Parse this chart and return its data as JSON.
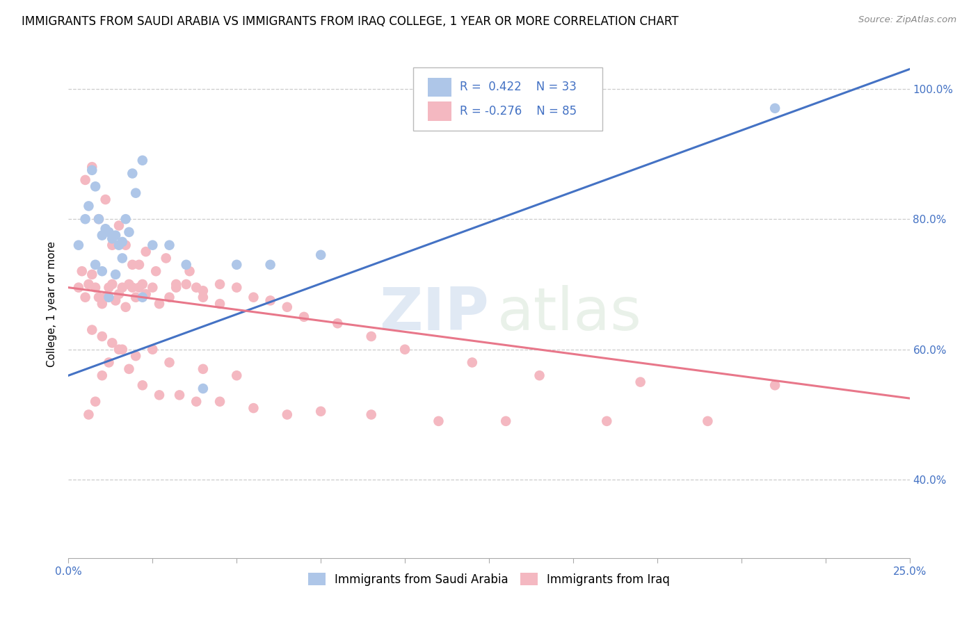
{
  "title": "IMMIGRANTS FROM SAUDI ARABIA VS IMMIGRANTS FROM IRAQ COLLEGE, 1 YEAR OR MORE CORRELATION CHART",
  "source": "Source: ZipAtlas.com",
  "ylabel": "College, 1 year or more",
  "xlim": [
    0.0,
    0.25
  ],
  "ylim": [
    0.28,
    1.06
  ],
  "saudi_color": "#aec6e8",
  "iraq_color": "#f4b8c1",
  "saudi_line_color": "#4472c4",
  "iraq_line_color": "#e8778a",
  "legend_R_color": "#4472c4",
  "saudi_line_x": [
    0.0,
    0.25
  ],
  "saudi_line_y": [
    0.56,
    1.03
  ],
  "iraq_line_x": [
    0.0,
    0.25
  ],
  "iraq_line_y": [
    0.695,
    0.525
  ],
  "ytick_positions": [
    0.4,
    0.6,
    0.8,
    1.0
  ],
  "ytick_labels": [
    "40.0%",
    "60.0%",
    "80.0%",
    "100.0%"
  ],
  "saudi_scatter_x": [
    0.003,
    0.005,
    0.006,
    0.007,
    0.008,
    0.009,
    0.01,
    0.011,
    0.012,
    0.013,
    0.014,
    0.015,
    0.016,
    0.017,
    0.019,
    0.02,
    0.022,
    0.025,
    0.03,
    0.035,
    0.04,
    0.05,
    0.06,
    0.075,
    0.008,
    0.01,
    0.012,
    0.014,
    0.016,
    0.018,
    0.022,
    0.12,
    0.21
  ],
  "saudi_scatter_y": [
    0.76,
    0.8,
    0.82,
    0.875,
    0.85,
    0.8,
    0.775,
    0.785,
    0.78,
    0.77,
    0.775,
    0.76,
    0.765,
    0.8,
    0.87,
    0.84,
    0.89,
    0.76,
    0.76,
    0.73,
    0.54,
    0.73,
    0.73,
    0.745,
    0.73,
    0.72,
    0.68,
    0.715,
    0.74,
    0.78,
    0.68,
    0.945,
    0.97
  ],
  "iraq_scatter_x": [
    0.003,
    0.004,
    0.005,
    0.006,
    0.007,
    0.008,
    0.009,
    0.01,
    0.011,
    0.012,
    0.013,
    0.014,
    0.015,
    0.016,
    0.017,
    0.018,
    0.019,
    0.02,
    0.021,
    0.022,
    0.023,
    0.025,
    0.027,
    0.03,
    0.032,
    0.035,
    0.038,
    0.04,
    0.045,
    0.05,
    0.055,
    0.06,
    0.065,
    0.07,
    0.08,
    0.09,
    0.1,
    0.12,
    0.14,
    0.17,
    0.21,
    0.005,
    0.007,
    0.009,
    0.011,
    0.013,
    0.015,
    0.017,
    0.019,
    0.021,
    0.023,
    0.026,
    0.029,
    0.032,
    0.036,
    0.04,
    0.045,
    0.007,
    0.01,
    0.013,
    0.016,
    0.02,
    0.025,
    0.03,
    0.04,
    0.05,
    0.006,
    0.008,
    0.01,
    0.012,
    0.015,
    0.018,
    0.022,
    0.027,
    0.033,
    0.038,
    0.045,
    0.055,
    0.065,
    0.075,
    0.09,
    0.11,
    0.13,
    0.16,
    0.19
  ],
  "iraq_scatter_y": [
    0.695,
    0.72,
    0.68,
    0.7,
    0.715,
    0.695,
    0.68,
    0.67,
    0.68,
    0.695,
    0.7,
    0.675,
    0.685,
    0.695,
    0.665,
    0.7,
    0.695,
    0.68,
    0.695,
    0.7,
    0.685,
    0.695,
    0.67,
    0.68,
    0.695,
    0.7,
    0.695,
    0.68,
    0.67,
    0.695,
    0.68,
    0.675,
    0.665,
    0.65,
    0.64,
    0.62,
    0.6,
    0.58,
    0.56,
    0.55,
    0.545,
    0.86,
    0.88,
    0.8,
    0.83,
    0.76,
    0.79,
    0.76,
    0.73,
    0.73,
    0.75,
    0.72,
    0.74,
    0.7,
    0.72,
    0.69,
    0.7,
    0.63,
    0.62,
    0.61,
    0.6,
    0.59,
    0.6,
    0.58,
    0.57,
    0.56,
    0.5,
    0.52,
    0.56,
    0.58,
    0.6,
    0.57,
    0.545,
    0.53,
    0.53,
    0.52,
    0.52,
    0.51,
    0.5,
    0.505,
    0.5,
    0.49,
    0.49,
    0.49,
    0.49
  ]
}
